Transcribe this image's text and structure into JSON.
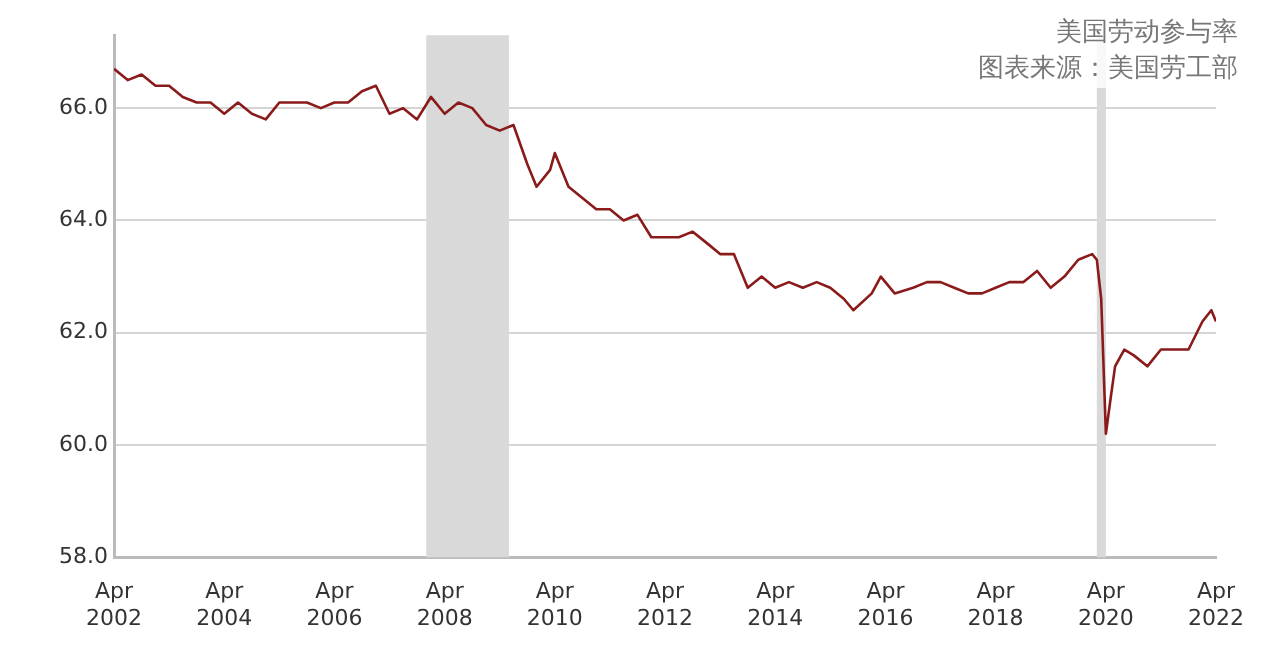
{
  "chart_data": {
    "type": "line",
    "title": "美国劳动参与率",
    "annotations": [
      "图表来源：美国劳工部"
    ],
    "x": [
      "2002-04",
      "2002-07",
      "2002-10",
      "2003-01",
      "2003-04",
      "2003-07",
      "2003-10",
      "2004-01",
      "2004-04",
      "2004-07",
      "2004-10",
      "2005-01",
      "2005-04",
      "2005-07",
      "2005-10",
      "2006-01",
      "2006-04",
      "2006-07",
      "2006-10",
      "2007-01",
      "2007-04",
      "2007-07",
      "2007-10",
      "2008-01",
      "2008-04",
      "2008-07",
      "2008-10",
      "2009-01",
      "2009-04",
      "2009-07",
      "2009-10",
      "2009-12",
      "2010-03",
      "2010-04",
      "2010-07",
      "2010-10",
      "2011-01",
      "2011-04",
      "2011-07",
      "2011-10",
      "2012-01",
      "2012-04",
      "2012-07",
      "2012-10",
      "2013-01",
      "2013-04",
      "2013-07",
      "2013-10",
      "2014-01",
      "2014-04",
      "2014-07",
      "2014-10",
      "2015-01",
      "2015-04",
      "2015-07",
      "2015-09",
      "2016-01",
      "2016-03",
      "2016-06",
      "2016-10",
      "2017-01",
      "2017-04",
      "2017-07",
      "2017-10",
      "2018-01",
      "2018-04",
      "2018-07",
      "2018-10",
      "2019-01",
      "2019-04",
      "2019-07",
      "2019-10",
      "2020-01",
      "2020-02",
      "2020-03",
      "2020-04",
      "2020-05",
      "2020-06",
      "2020-08",
      "2020-10",
      "2021-01",
      "2021-04",
      "2021-07",
      "2021-10",
      "2022-01",
      "2022-03",
      "2022-04"
    ],
    "series": [
      {
        "color": "#8b1a1a",
        "values": [
          66.7,
          66.5,
          66.6,
          66.4,
          66.4,
          66.2,
          66.1,
          66.1,
          65.9,
          66.1,
          65.9,
          65.8,
          66.1,
          66.1,
          66.1,
          66.0,
          66.1,
          66.1,
          66.3,
          66.4,
          65.9,
          66.0,
          65.8,
          66.2,
          65.9,
          66.1,
          66.0,
          65.7,
          65.6,
          65.7,
          65.0,
          64.6,
          64.9,
          65.2,
          64.6,
          64.4,
          64.2,
          64.2,
          64.0,
          64.1,
          63.7,
          63.7,
          63.7,
          63.8,
          63.6,
          63.4,
          63.4,
          62.8,
          63.0,
          62.8,
          62.9,
          62.8,
          62.9,
          62.8,
          62.6,
          62.4,
          62.7,
          63.0,
          62.7,
          62.8,
          62.9,
          62.9,
          62.8,
          62.7,
          62.7,
          62.8,
          62.9,
          62.9,
          63.1,
          62.8,
          63.0,
          63.3,
          63.4,
          63.3,
          62.6,
          60.2,
          60.8,
          61.4,
          61.7,
          61.6,
          61.4,
          61.7,
          61.7,
          61.7,
          62.2,
          62.4,
          62.2
        ]
      }
    ],
    "xlim": [
      "2002-04",
      "2022-04"
    ],
    "xticks": [
      {
        "value": "2002-04",
        "label": "Apr 2002"
      },
      {
        "value": "2004-04",
        "label": "Apr 2004"
      },
      {
        "value": "2006-04",
        "label": "Apr 2006"
      },
      {
        "value": "2008-04",
        "label": "Apr 2008"
      },
      {
        "value": "2010-04",
        "label": "Apr 2010"
      },
      {
        "value": "2012-04",
        "label": "Apr 2012"
      },
      {
        "value": "2014-04",
        "label": "Apr 2014"
      },
      {
        "value": "2016-04",
        "label": "Apr 2016"
      },
      {
        "value": "2018-04",
        "label": "Apr 2018"
      },
      {
        "value": "2020-04",
        "label": "Apr 2020"
      },
      {
        "value": "2022-04",
        "label": "Apr 2022"
      }
    ],
    "ylim": [
      58,
      67.3
    ],
    "yticks": [
      {
        "value": 58,
        "label": "58.0"
      },
      {
        "value": 60,
        "label": "60.0"
      },
      {
        "value": 62,
        "label": "62.0"
      },
      {
        "value": 64,
        "label": "64.0"
      },
      {
        "value": 66,
        "label": "66.0"
      }
    ],
    "bands": [
      {
        "axis": "x",
        "from": "2007-12",
        "to": "2009-06",
        "color": "#d9d9d9"
      },
      {
        "axis": "x",
        "from": "2020-02",
        "to": "2020-04",
        "color": "#d9d9d9"
      }
    ],
    "grid": "y",
    "marker": "none",
    "line_style": "solid",
    "legend": false
  }
}
